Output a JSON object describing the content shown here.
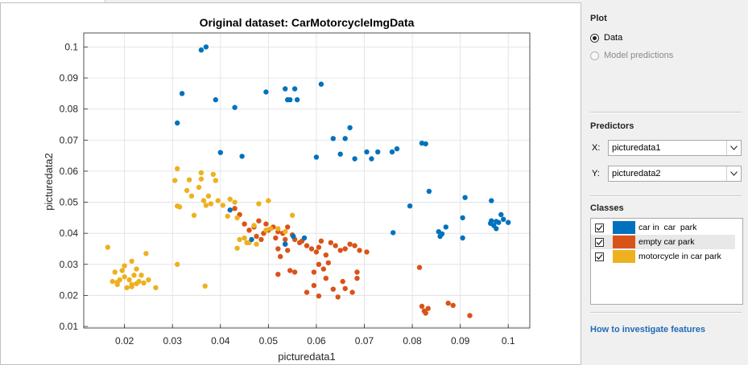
{
  "window": {
    "tab_label": ""
  },
  "plot_panel": {
    "title": "Plot",
    "options": [
      {
        "label": "Data",
        "selected": true,
        "enabled": true
      },
      {
        "label": "Model predictions",
        "selected": false,
        "enabled": false
      }
    ]
  },
  "predictors": {
    "title": "Predictors",
    "x_axis": "X:",
    "y_axis": "Y:",
    "x_value": "picturedata1",
    "y_value": "picturedata2"
  },
  "classes": {
    "title": "Classes",
    "items": [
      {
        "label": "car in  car  park",
        "color": "#0072bd",
        "checked": true
      },
      {
        "label": "empty car park",
        "color": "#d95319",
        "checked": true
      },
      {
        "label": "motorcycle in car park",
        "color": "#edb120",
        "checked": true
      }
    ],
    "highlighted_index": 1
  },
  "help": {
    "link_label": "How to investigate features"
  },
  "chart_data": {
    "type": "scatter",
    "title": "Original dataset: CarMotorcycleImgData",
    "xlabel": "picturedata1",
    "ylabel": "picturedata2",
    "xlim": [
      0.0115,
      0.1045
    ],
    "ylim": [
      0.0095,
      0.1045
    ],
    "xticks": [
      "0.02",
      "0.03",
      "0.04",
      "0.05",
      "0.06",
      "0.07",
      "0.08",
      "0.09",
      "0.1"
    ],
    "yticks": [
      "0.01",
      "0.02",
      "0.03",
      "0.04",
      "0.05",
      "0.06",
      "0.07",
      "0.08",
      "0.09",
      "0.1"
    ],
    "grid": true,
    "series": [
      {
        "name": "car in  car  park",
        "color": "#0072bd",
        "points": [
          [
            0.036,
            0.099
          ],
          [
            0.037,
            0.1
          ],
          [
            0.032,
            0.085
          ],
          [
            0.039,
            0.083
          ],
          [
            0.043,
            0.0805
          ],
          [
            0.031,
            0.0755
          ],
          [
            0.0495,
            0.0855
          ],
          [
            0.0535,
            0.0865
          ],
          [
            0.0555,
            0.0865
          ],
          [
            0.054,
            0.083
          ],
          [
            0.0545,
            0.083
          ],
          [
            0.056,
            0.083
          ],
          [
            0.061,
            0.088
          ],
          [
            0.04,
            0.066
          ],
          [
            0.0445,
            0.0648
          ],
          [
            0.06,
            0.0645
          ],
          [
            0.0635,
            0.0705
          ],
          [
            0.066,
            0.0705
          ],
          [
            0.067,
            0.074
          ],
          [
            0.065,
            0.0655
          ],
          [
            0.068,
            0.064
          ],
          [
            0.0705,
            0.0662
          ],
          [
            0.0715,
            0.064
          ],
          [
            0.0728,
            0.0662
          ],
          [
            0.0758,
            0.0662
          ],
          [
            0.0768,
            0.0672
          ],
          [
            0.082,
            0.069
          ],
          [
            0.0828,
            0.0688
          ],
          [
            0.0835,
            0.0535
          ],
          [
            0.0795,
            0.0488
          ],
          [
            0.0858,
            0.039
          ],
          [
            0.0862,
            0.0398
          ],
          [
            0.087,
            0.042
          ],
          [
            0.0905,
            0.045
          ],
          [
            0.091,
            0.0515
          ],
          [
            0.0905,
            0.0385
          ],
          [
            0.0855,
            0.0405
          ],
          [
            0.0965,
            0.044
          ],
          [
            0.097,
            0.0425
          ],
          [
            0.0975,
            0.0415
          ],
          [
            0.098,
            0.0435
          ],
          [
            0.0985,
            0.046
          ],
          [
            0.099,
            0.0445
          ],
          [
            0.1,
            0.0435
          ],
          [
            0.0965,
            0.0505
          ],
          [
            0.0963,
            0.0432
          ],
          [
            0.0975,
            0.0438
          ],
          [
            0.076,
            0.0402
          ],
          [
            0.042,
            0.0475
          ],
          [
            0.0465,
            0.038
          ],
          [
            0.0535,
            0.0365
          ],
          [
            0.0552,
            0.039
          ],
          [
            0.0575,
            0.0385
          ]
        ]
      },
      {
        "name": "empty car park",
        "color": "#d95319",
        "points": [
          [
            0.043,
            0.048
          ],
          [
            0.044,
            0.046
          ],
          [
            0.045,
            0.043
          ],
          [
            0.046,
            0.041
          ],
          [
            0.047,
            0.042
          ],
          [
            0.0475,
            0.039
          ],
          [
            0.048,
            0.044
          ],
          [
            0.0485,
            0.038
          ],
          [
            0.049,
            0.04
          ],
          [
            0.0495,
            0.043
          ],
          [
            0.05,
            0.041
          ],
          [
            0.051,
            0.042
          ],
          [
            0.0515,
            0.0385
          ],
          [
            0.052,
            0.0405
          ],
          [
            0.053,
            0.04
          ],
          [
            0.0535,
            0.038
          ],
          [
            0.054,
            0.042
          ],
          [
            0.055,
            0.0395
          ],
          [
            0.052,
            0.035
          ],
          [
            0.0525,
            0.0325
          ],
          [
            0.0535,
            0.0365
          ],
          [
            0.054,
            0.0345
          ],
          [
            0.0555,
            0.038
          ],
          [
            0.0565,
            0.037
          ],
          [
            0.057,
            0.0375
          ],
          [
            0.058,
            0.036
          ],
          [
            0.059,
            0.035
          ],
          [
            0.06,
            0.034
          ],
          [
            0.0605,
            0.0355
          ],
          [
            0.061,
            0.0375
          ],
          [
            0.0605,
            0.03
          ],
          [
            0.0615,
            0.0285
          ],
          [
            0.062,
            0.033
          ],
          [
            0.0625,
            0.0305
          ],
          [
            0.063,
            0.037
          ],
          [
            0.064,
            0.036
          ],
          [
            0.065,
            0.0345
          ],
          [
            0.066,
            0.035
          ],
          [
            0.067,
            0.0365
          ],
          [
            0.068,
            0.036
          ],
          [
            0.069,
            0.0345
          ],
          [
            0.0705,
            0.034
          ],
          [
            0.0595,
            0.0275
          ],
          [
            0.062,
            0.0255
          ],
          [
            0.0635,
            0.022
          ],
          [
            0.0645,
            0.0195
          ],
          [
            0.0655,
            0.0245
          ],
          [
            0.0675,
            0.021
          ],
          [
            0.0685,
            0.0255
          ],
          [
            0.0685,
            0.0275
          ],
          [
            0.058,
            0.021
          ],
          [
            0.0605,
            0.0198
          ],
          [
            0.0595,
            0.0232
          ],
          [
            0.0545,
            0.028
          ],
          [
            0.0555,
            0.0275
          ],
          [
            0.052,
            0.0268
          ],
          [
            0.066,
            0.0222
          ],
          [
            0.0815,
            0.029
          ],
          [
            0.082,
            0.0165
          ],
          [
            0.0825,
            0.015
          ],
          [
            0.0828,
            0.0143
          ],
          [
            0.0833,
            0.0158
          ],
          [
            0.0875,
            0.0175
          ],
          [
            0.0885,
            0.0168
          ],
          [
            0.092,
            0.0135
          ]
        ]
      },
      {
        "name": "motorcycle in car park",
        "color": "#edb120",
        "points": [
          [
            0.0165,
            0.0355
          ],
          [
            0.018,
            0.0275
          ],
          [
            0.0175,
            0.0245
          ],
          [
            0.0185,
            0.0235
          ],
          [
            0.019,
            0.025
          ],
          [
            0.0195,
            0.028
          ],
          [
            0.02,
            0.0295
          ],
          [
            0.02,
            0.026
          ],
          [
            0.0205,
            0.0225
          ],
          [
            0.021,
            0.025
          ],
          [
            0.0215,
            0.031
          ],
          [
            0.0215,
            0.0235
          ],
          [
            0.022,
            0.0265
          ],
          [
            0.0225,
            0.0285
          ],
          [
            0.023,
            0.0245
          ],
          [
            0.0235,
            0.0265
          ],
          [
            0.024,
            0.024
          ],
          [
            0.0245,
            0.0335
          ],
          [
            0.025,
            0.025
          ],
          [
            0.0265,
            0.0225
          ],
          [
            0.0215,
            0.0228
          ],
          [
            0.0225,
            0.0238
          ],
          [
            0.0185,
            0.0242
          ],
          [
            0.031,
            0.03
          ],
          [
            0.0305,
            0.057
          ],
          [
            0.031,
            0.0608
          ],
          [
            0.031,
            0.0488
          ],
          [
            0.0315,
            0.0485
          ],
          [
            0.033,
            0.0538
          ],
          [
            0.0335,
            0.0572
          ],
          [
            0.034,
            0.052
          ],
          [
            0.0345,
            0.0458
          ],
          [
            0.0355,
            0.0548
          ],
          [
            0.036,
            0.0595
          ],
          [
            0.036,
            0.0575
          ],
          [
            0.0365,
            0.0505
          ],
          [
            0.037,
            0.049
          ],
          [
            0.0375,
            0.052
          ],
          [
            0.038,
            0.0495
          ],
          [
            0.0385,
            0.059
          ],
          [
            0.039,
            0.057
          ],
          [
            0.0395,
            0.0505
          ],
          [
            0.0405,
            0.049
          ],
          [
            0.0415,
            0.0455
          ],
          [
            0.042,
            0.051
          ],
          [
            0.043,
            0.05
          ],
          [
            0.0435,
            0.045
          ],
          [
            0.044,
            0.038
          ],
          [
            0.045,
            0.0385
          ],
          [
            0.0455,
            0.037
          ],
          [
            0.046,
            0.037
          ],
          [
            0.047,
            0.0425
          ],
          [
            0.048,
            0.0495
          ],
          [
            0.0495,
            0.041
          ],
          [
            0.05,
            0.0505
          ],
          [
            0.0505,
            0.0415
          ],
          [
            0.0535,
            0.0405
          ],
          [
            0.055,
            0.0458
          ],
          [
            0.0435,
            0.0352
          ],
          [
            0.0368,
            0.023
          ],
          [
            0.052,
            0.0415
          ],
          [
            0.0475,
            0.0365
          ]
        ]
      }
    ]
  }
}
